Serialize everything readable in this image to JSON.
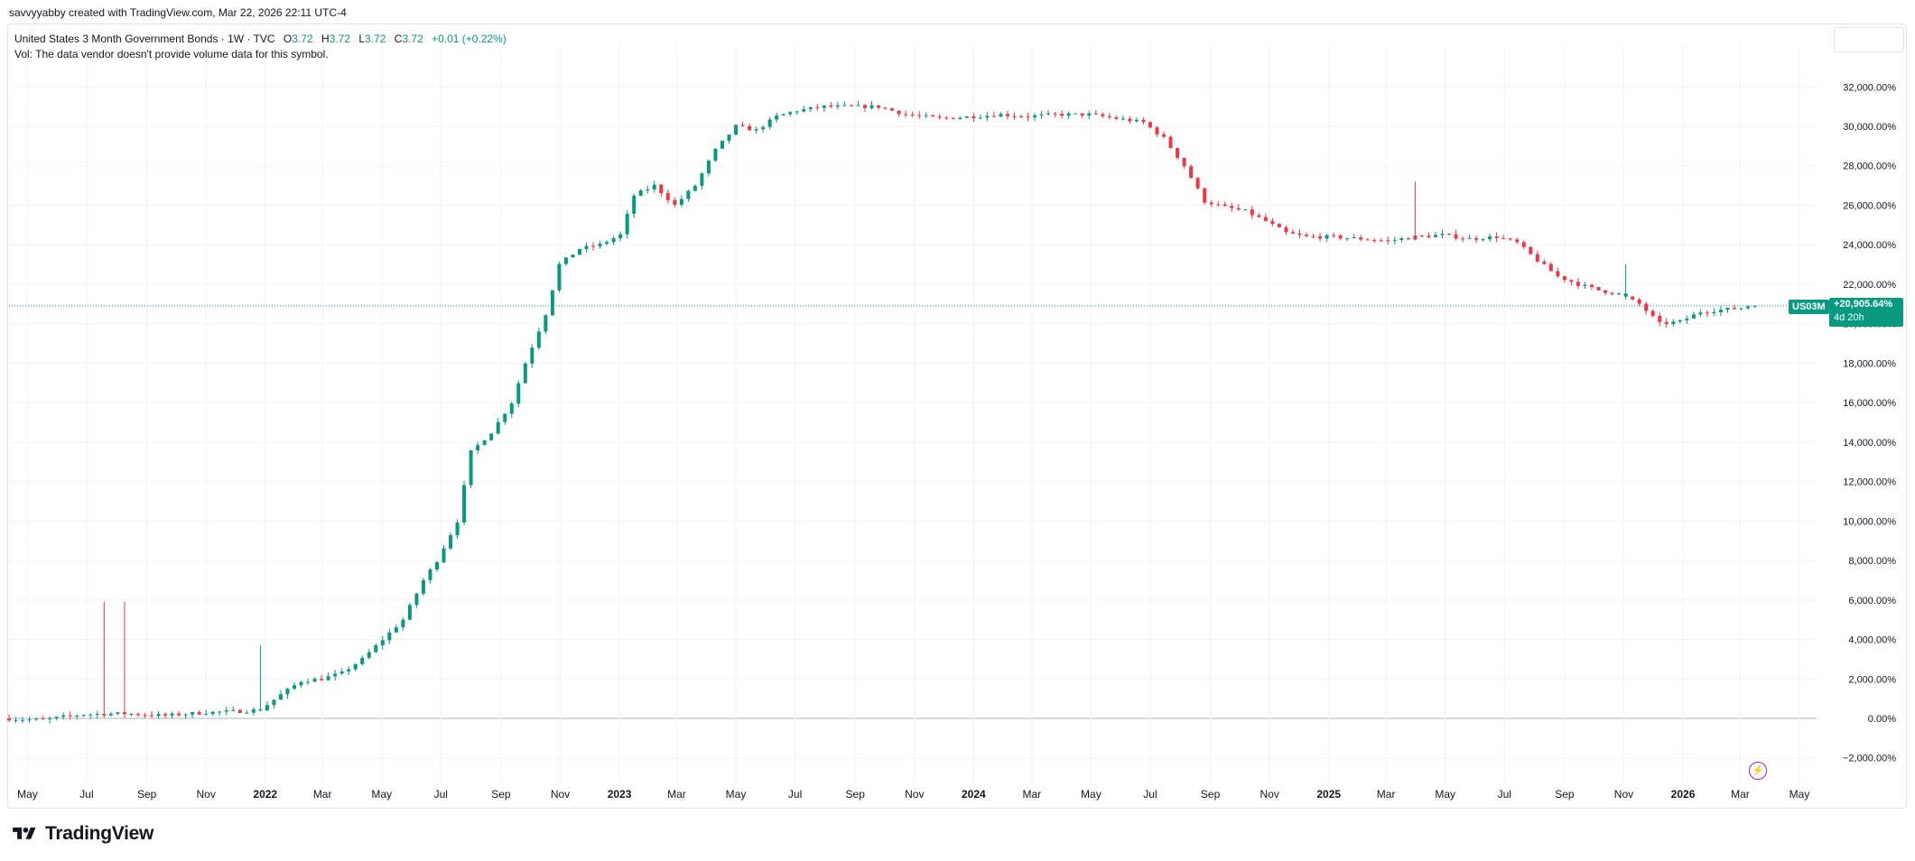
{
  "header": {
    "attribution": "savvyyabby created with TradingView.com, Mar 22, 2026 22:11 UTC-4"
  },
  "legend": {
    "symbol_title": "United States 3 Month Government Bonds · 1W · TVC",
    "o_label": "O",
    "o_value": "3.72",
    "h_label": "H",
    "h_value": "3.72",
    "l_label": "L",
    "l_value": "3.72",
    "c_label": "C",
    "c_value": "3.72",
    "change": "+0.01 (+0.22%)",
    "volume_note": "Vol: The data vendor doesn't provide volume data for this symbol."
  },
  "price_tag": {
    "symbol": "US03M",
    "value": "+20,905.64%",
    "countdown": "4d 20h"
  },
  "footer": {
    "brand": "TradingView"
  },
  "colors": {
    "up": "#089981",
    "down": "#f23645",
    "grid": "#f0f3fa",
    "zero_line": "#b2b5be",
    "last_line": "#089981"
  },
  "chart_data": {
    "type": "candlestick",
    "title": "United States 3 Month Government Bonds · 1W · TVC",
    "ylabel": "%",
    "y_unit": "percent change",
    "ylim": [
      -2600,
      33000
    ],
    "y_ticks": [
      -2000,
      0,
      2000,
      4000,
      6000,
      8000,
      10000,
      12000,
      14000,
      16000,
      18000,
      20000,
      22000,
      24000,
      26000,
      28000,
      30000,
      32000
    ],
    "y_tick_labels": [
      "−2,000.00%",
      "0.00%",
      "2,000.00%",
      "4,000.00%",
      "6,000.00%",
      "8,000.00%",
      "10,000.00%",
      "12,000.00%",
      "14,000.00%",
      "16,000.00%",
      "18,000.00%",
      "20,000.00%",
      "22,000.00%",
      "24,000.00%",
      "26,000.00%",
      "28,000.00%",
      "30,000.00%",
      "32,000.00%"
    ],
    "x_ticks": [
      {
        "label": "May",
        "date": "2021-05-01",
        "bold": false
      },
      {
        "label": "Jul",
        "date": "2021-07-01",
        "bold": false
      },
      {
        "label": "Sep",
        "date": "2021-09-01",
        "bold": false
      },
      {
        "label": "Nov",
        "date": "2021-11-01",
        "bold": false
      },
      {
        "label": "2022",
        "date": "2022-01-01",
        "bold": true
      },
      {
        "label": "Mar",
        "date": "2022-03-01",
        "bold": false
      },
      {
        "label": "May",
        "date": "2022-05-01",
        "bold": false
      },
      {
        "label": "Jul",
        "date": "2022-07-01",
        "bold": false
      },
      {
        "label": "Sep",
        "date": "2022-09-01",
        "bold": false
      },
      {
        "label": "Nov",
        "date": "2022-11-01",
        "bold": false
      },
      {
        "label": "2023",
        "date": "2023-01-01",
        "bold": true
      },
      {
        "label": "Mar",
        "date": "2023-03-01",
        "bold": false
      },
      {
        "label": "May",
        "date": "2023-05-01",
        "bold": false
      },
      {
        "label": "Jul",
        "date": "2023-07-01",
        "bold": false
      },
      {
        "label": "Sep",
        "date": "2023-09-01",
        "bold": false
      },
      {
        "label": "Nov",
        "date": "2023-11-01",
        "bold": false
      },
      {
        "label": "2024",
        "date": "2024-01-01",
        "bold": true
      },
      {
        "label": "Mar",
        "date": "2024-03-01",
        "bold": false
      },
      {
        "label": "May",
        "date": "2024-05-01",
        "bold": false
      },
      {
        "label": "Jul",
        "date": "2024-07-01",
        "bold": false
      },
      {
        "label": "Sep",
        "date": "2024-09-01",
        "bold": false
      },
      {
        "label": "Nov",
        "date": "2024-11-01",
        "bold": false
      },
      {
        "label": "2025",
        "date": "2025-01-01",
        "bold": true
      },
      {
        "label": "Mar",
        "date": "2025-03-01",
        "bold": false
      },
      {
        "label": "May",
        "date": "2025-05-01",
        "bold": false
      },
      {
        "label": "Jul",
        "date": "2025-07-01",
        "bold": false
      },
      {
        "label": "Sep",
        "date": "2025-09-01",
        "bold": false
      },
      {
        "label": "Nov",
        "date": "2025-11-01",
        "bold": false
      },
      {
        "label": "2026",
        "date": "2026-01-01",
        "bold": true
      },
      {
        "label": "Mar",
        "date": "2026-03-01",
        "bold": false
      },
      {
        "label": "May",
        "date": "2026-05-01",
        "bold": false
      }
    ],
    "last_value": 20905.64,
    "series": [
      {
        "name": "US03M",
        "points": [
          {
            "x": "2021-04-12",
            "y": 0
          },
          {
            "x": "2021-05-03",
            "y": -50
          },
          {
            "x": "2021-05-24",
            "y": -80
          },
          {
            "x": "2021-06-14",
            "y": 80
          },
          {
            "x": "2021-07-05",
            "y": 200
          },
          {
            "x": "2021-07-26",
            "y": 230
          },
          {
            "x": "2021-08-16",
            "y": 240
          },
          {
            "x": "2021-09-06",
            "y": 190
          },
          {
            "x": "2021-09-27",
            "y": 140
          },
          {
            "x": "2021-10-18",
            "y": 230
          },
          {
            "x": "2021-11-08",
            "y": 300
          },
          {
            "x": "2021-11-29",
            "y": 340
          },
          {
            "x": "2021-12-20",
            "y": 380
          },
          {
            "x": "2022-01-03",
            "y": 450
          },
          {
            "x": "2022-01-24",
            "y": 1200
          },
          {
            "x": "2022-02-14",
            "y": 1900
          },
          {
            "x": "2022-03-07",
            "y": 2000
          },
          {
            "x": "2022-03-28",
            "y": 2300
          },
          {
            "x": "2022-04-18",
            "y": 3000
          },
          {
            "x": "2022-05-09",
            "y": 4000
          },
          {
            "x": "2022-05-30",
            "y": 5000
          },
          {
            "x": "2022-06-20",
            "y": 7000
          },
          {
            "x": "2022-07-04",
            "y": 8000
          },
          {
            "x": "2022-07-25",
            "y": 10000
          },
          {
            "x": "2022-08-08",
            "y": 13500
          },
          {
            "x": "2022-08-29",
            "y": 14500
          },
          {
            "x": "2022-09-19",
            "y": 16000
          },
          {
            "x": "2022-10-03",
            "y": 18000
          },
          {
            "x": "2022-10-24",
            "y": 20500
          },
          {
            "x": "2022-11-07",
            "y": 23000
          },
          {
            "x": "2022-11-28",
            "y": 23800
          },
          {
            "x": "2022-12-19",
            "y": 24000
          },
          {
            "x": "2023-01-09",
            "y": 24500
          },
          {
            "x": "2023-01-23",
            "y": 26500
          },
          {
            "x": "2023-02-13",
            "y": 27000
          },
          {
            "x": "2023-03-06",
            "y": 26000
          },
          {
            "x": "2023-03-27",
            "y": 27000
          },
          {
            "x": "2023-04-17",
            "y": 28800
          },
          {
            "x": "2023-05-08",
            "y": 30000
          },
          {
            "x": "2023-05-29",
            "y": 29800
          },
          {
            "x": "2023-06-19",
            "y": 30500
          },
          {
            "x": "2023-07-10",
            "y": 30800
          },
          {
            "x": "2023-08-07",
            "y": 31000
          },
          {
            "x": "2023-09-04",
            "y": 31000
          },
          {
            "x": "2023-10-02",
            "y": 31000
          },
          {
            "x": "2023-10-30",
            "y": 30600
          },
          {
            "x": "2023-12-04",
            "y": 30400
          },
          {
            "x": "2024-01-08",
            "y": 30500
          },
          {
            "x": "2024-02-05",
            "y": 30600
          },
          {
            "x": "2024-03-04",
            "y": 30500
          },
          {
            "x": "2024-04-01",
            "y": 30600
          },
          {
            "x": "2024-05-06",
            "y": 30600
          },
          {
            "x": "2024-06-03",
            "y": 30400
          },
          {
            "x": "2024-07-01",
            "y": 30200
          },
          {
            "x": "2024-07-22",
            "y": 29400
          },
          {
            "x": "2024-08-12",
            "y": 28000
          },
          {
            "x": "2024-09-02",
            "y": 26200
          },
          {
            "x": "2024-09-23",
            "y": 25900
          },
          {
            "x": "2024-10-14",
            "y": 25700
          },
          {
            "x": "2024-11-04",
            "y": 25200
          },
          {
            "x": "2024-11-25",
            "y": 24600
          },
          {
            "x": "2024-12-16",
            "y": 24400
          },
          {
            "x": "2025-01-13",
            "y": 24400
          },
          {
            "x": "2025-02-10",
            "y": 24300
          },
          {
            "x": "2025-03-10",
            "y": 24200
          },
          {
            "x": "2025-04-07",
            "y": 24400
          },
          {
            "x": "2025-05-05",
            "y": 24500
          },
          {
            "x": "2025-06-02",
            "y": 24300
          },
          {
            "x": "2025-06-30",
            "y": 24400
          },
          {
            "x": "2025-07-21",
            "y": 24100
          },
          {
            "x": "2025-08-11",
            "y": 23200
          },
          {
            "x": "2025-09-01",
            "y": 22400
          },
          {
            "x": "2025-09-22",
            "y": 22000
          },
          {
            "x": "2025-10-13",
            "y": 21700
          },
          {
            "x": "2025-11-03",
            "y": 21500
          },
          {
            "x": "2025-11-24",
            "y": 21000
          },
          {
            "x": "2025-12-15",
            "y": 20000
          },
          {
            "x": "2026-01-05",
            "y": 20100
          },
          {
            "x": "2026-01-26",
            "y": 20600
          },
          {
            "x": "2026-02-16",
            "y": 20700
          },
          {
            "x": "2026-03-09",
            "y": 20800
          },
          {
            "x": "2026-03-16",
            "y": 20905.64
          }
        ]
      }
    ],
    "notable_wicks": [
      {
        "x": "2021-07-19",
        "high": 5900,
        "direction": "down"
      },
      {
        "x": "2021-08-09",
        "high": 5900,
        "direction": "down"
      },
      {
        "x": "2021-12-27",
        "high": 3700,
        "direction": "up"
      },
      {
        "x": "2025-03-31",
        "high": 27200,
        "direction": "down"
      },
      {
        "x": "2025-11-03",
        "high": 23000,
        "direction": "up"
      }
    ]
  }
}
